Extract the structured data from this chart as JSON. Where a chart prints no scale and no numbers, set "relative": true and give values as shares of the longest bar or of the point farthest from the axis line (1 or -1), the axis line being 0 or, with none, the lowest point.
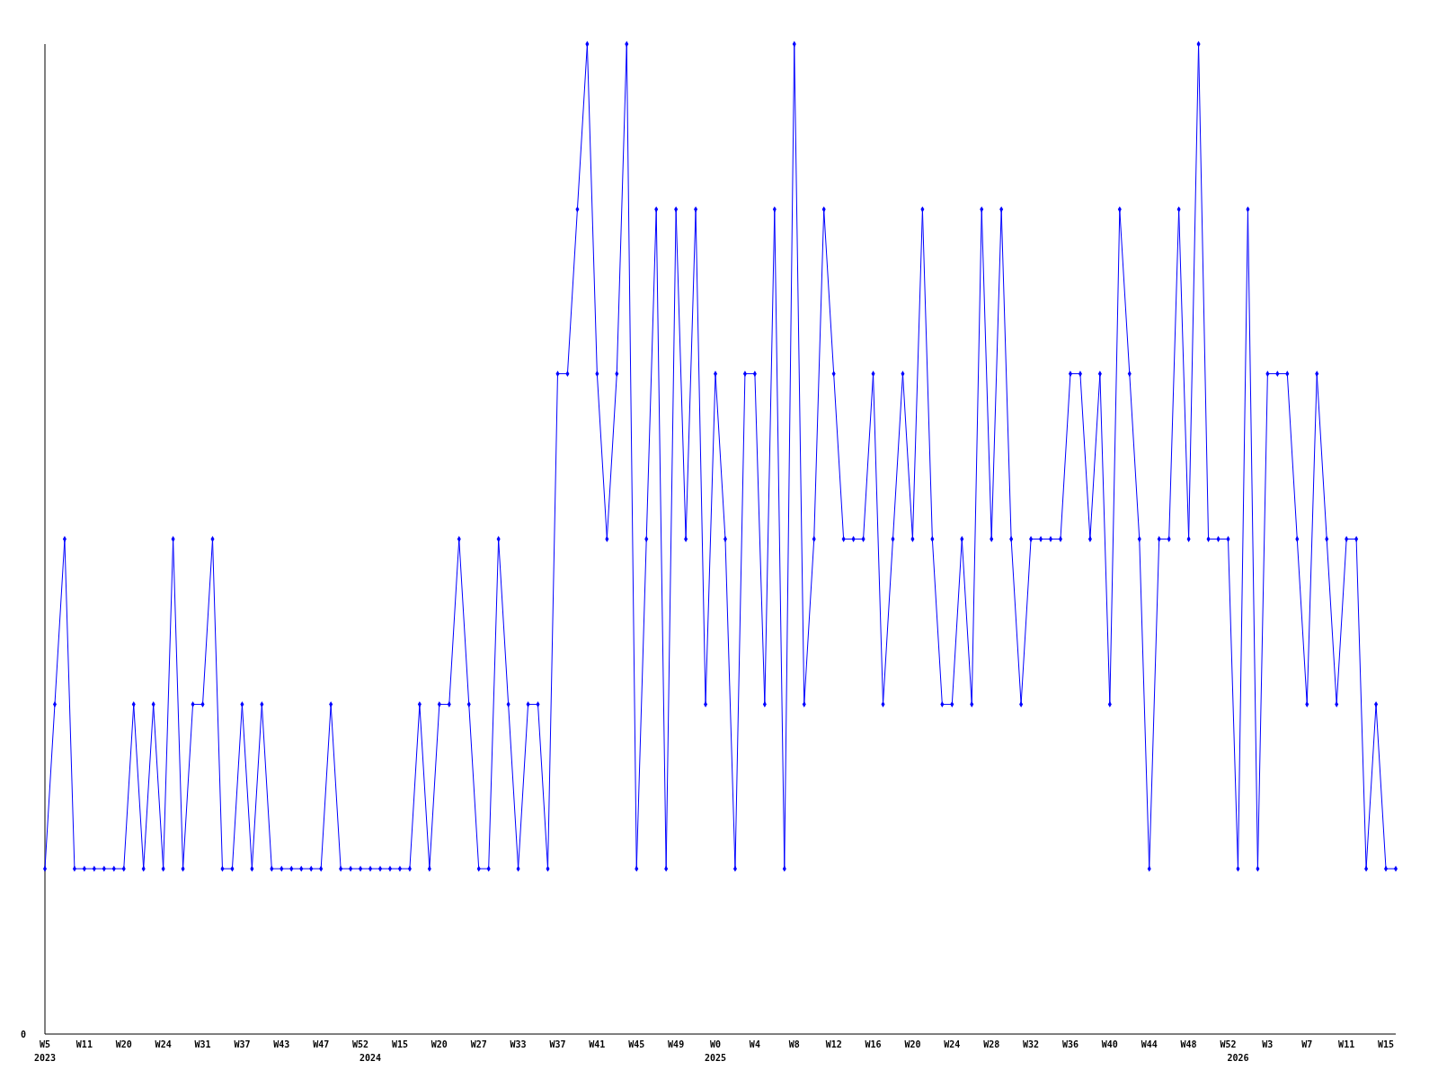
{
  "chart_data": {
    "type": "line",
    "relative": true,
    "marker": "diamond",
    "line_style": "solid",
    "categories": [
      "W5\n2023",
      null,
      null,
      null,
      "W11",
      null,
      null,
      null,
      "W20",
      null,
      null,
      null,
      "W24",
      null,
      null,
      null,
      "W31",
      null,
      null,
      null,
      "W37",
      null,
      null,
      null,
      "W43",
      null,
      null,
      null,
      "W47",
      null,
      null,
      null,
      "W52",
      "\n2024",
      null,
      null,
      "W15",
      null,
      null,
      null,
      "W20",
      null,
      null,
      null,
      "W27",
      null,
      null,
      null,
      "W33",
      null,
      null,
      null,
      "W37",
      null,
      null,
      null,
      "W41",
      null,
      null,
      null,
      "W45",
      null,
      null,
      null,
      "W49",
      null,
      null,
      null,
      "W0\n2025",
      null,
      null,
      null,
      "W4",
      null,
      null,
      null,
      "W8",
      null,
      null,
      null,
      "W12",
      null,
      null,
      null,
      "W16",
      null,
      null,
      null,
      "W20",
      null,
      null,
      null,
      "W24",
      null,
      null,
      null,
      "W28",
      null,
      null,
      null,
      "W32",
      null,
      null,
      null,
      "W36",
      null,
      null,
      null,
      "W40",
      null,
      null,
      null,
      "W44",
      null,
      null,
      null,
      "W48",
      null,
      null,
      null,
      "W52",
      "\n2026",
      null,
      null,
      "W3",
      null,
      null,
      null,
      "W7",
      null,
      null,
      null,
      "W11",
      null,
      null,
      null,
      "W15",
      null
    ],
    "annotations": [
      "0"
    ],
    "series": [
      {
        "color": "#0000ff",
        "values": [
          0.167,
          0.333,
          0.5,
          0.167,
          0.167,
          0.167,
          0.167,
          0.167,
          0.167,
          0.333,
          0.167,
          0.333,
          0.167,
          0.5,
          0.167,
          0.333,
          0.333,
          0.5,
          0.167,
          0.167,
          0.333,
          0.167,
          0.333,
          0.167,
          0.167,
          0.167,
          0.167,
          0.167,
          0.167,
          0.333,
          0.167,
          0.167,
          0.167,
          0.167,
          0.167,
          0.167,
          0.167,
          0.167,
          0.333,
          0.167,
          0.333,
          0.333,
          0.5,
          0.333,
          0.167,
          0.167,
          0.5,
          0.333,
          0.167,
          0.333,
          0.333,
          0.167,
          0.667,
          0.667,
          0.833,
          1,
          0.667,
          0.5,
          0.667,
          1,
          0.167,
          0.5,
          0.833,
          0.167,
          0.833,
          0.5,
          0.833,
          0.333,
          0.667,
          0.5,
          0.167,
          0.667,
          0.667,
          0.333,
          0.833,
          0.167,
          1,
          0.333,
          0.5,
          0.833,
          0.667,
          0.5,
          0.5,
          0.5,
          0.667,
          0.333,
          0.5,
          0.667,
          0.5,
          0.833,
          0.5,
          0.333,
          0.333,
          0.5,
          0.333,
          0.833,
          0.5,
          0.833,
          0.5,
          0.333,
          0.5,
          0.5,
          0.5,
          0.5,
          0.667,
          0.667,
          0.5,
          0.667,
          0.333,
          0.833,
          0.667,
          0.5,
          0.167,
          0.5,
          0.5,
          0.833,
          0.5,
          1,
          0.5,
          0.5,
          0.5,
          0.167,
          0.833,
          0.167,
          0.667,
          0.667,
          0.667,
          0.5,
          0.333,
          0.667,
          0.5,
          0.333,
          0.5,
          0.5,
          0.167,
          0.333,
          0.167,
          0.167
        ]
      }
    ]
  }
}
